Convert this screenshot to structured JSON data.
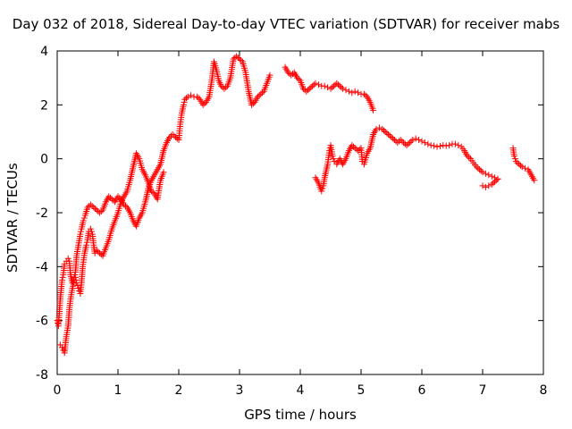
{
  "chart_data": {
    "type": "scatter",
    "title": "Day 032 of 2018, Sidereal Day-to-day VTEC variation (SDTVAR) for receiver mabs",
    "xlabel": "GPS time / hours",
    "ylabel": "SDTVAR / TECUs",
    "xlim": [
      0,
      8
    ],
    "ylim": [
      -8,
      4
    ],
    "xticks": [
      "0",
      "1",
      "2",
      "3",
      "4",
      "5",
      "6",
      "7",
      "8"
    ],
    "yticks": [
      "-8",
      "-6",
      "-4",
      "-2",
      "0",
      "2",
      "4"
    ],
    "marker": "+",
    "color": "#ff0000",
    "grid": false,
    "series": [
      {
        "segments": [
          [
            [
              0.0,
              -6.0
            ],
            [
              0.02,
              -6.2
            ],
            [
              0.05,
              -5.2
            ],
            [
              0.08,
              -4.5
            ],
            [
              0.1,
              -4.3
            ],
            [
              0.12,
              -3.9
            ],
            [
              0.15,
              -3.8
            ],
            [
              0.18,
              -3.7
            ],
            [
              0.2,
              -3.8
            ],
            [
              0.22,
              -4.3
            ],
            [
              0.25,
              -4.6
            ],
            [
              0.28,
              -4.4
            ],
            [
              0.3,
              -4.2
            ],
            [
              0.32,
              -3.6
            ],
            [
              0.35,
              -3.2
            ],
            [
              0.38,
              -2.8
            ],
            [
              0.4,
              -2.6
            ],
            [
              0.43,
              -2.3
            ],
            [
              0.46,
              -2.1
            ],
            [
              0.5,
              -1.8
            ],
            [
              0.55,
              -1.7
            ],
            [
              0.6,
              -1.8
            ],
            [
              0.65,
              -1.9
            ],
            [
              0.7,
              -2.0
            ],
            [
              0.75,
              -1.9
            ],
            [
              0.8,
              -1.6
            ],
            [
              0.85,
              -1.4
            ],
            [
              0.9,
              -1.5
            ],
            [
              0.95,
              -1.6
            ],
            [
              1.0,
              -1.4
            ],
            [
              1.05,
              -1.5
            ],
            [
              1.1,
              -1.7
            ],
            [
              1.15,
              -1.8
            ],
            [
              1.2,
              -2.0
            ],
            [
              1.25,
              -2.3
            ],
            [
              1.3,
              -2.5
            ],
            [
              1.35,
              -2.2
            ],
            [
              1.4,
              -2.0
            ],
            [
              1.45,
              -1.6
            ],
            [
              1.5,
              -1.1
            ],
            [
              1.55,
              -0.8
            ],
            [
              1.6,
              -0.6
            ],
            [
              1.65,
              -0.4
            ],
            [
              1.7,
              -0.2
            ],
            [
              1.75,
              0.3
            ],
            [
              1.8,
              0.6
            ],
            [
              1.85,
              0.8
            ],
            [
              1.9,
              0.9
            ],
            [
              1.95,
              0.8
            ],
            [
              2.0,
              0.7
            ],
            [
              2.02,
              1.2
            ],
            [
              2.05,
              1.7
            ],
            [
              2.08,
              2.0
            ],
            [
              2.1,
              2.2
            ],
            [
              2.15,
              2.3
            ],
            [
              2.2,
              2.35
            ],
            [
              2.25,
              2.3
            ],
            [
              2.3,
              2.3
            ],
            [
              2.35,
              2.2
            ],
            [
              2.4,
              2.0
            ],
            [
              2.45,
              2.1
            ],
            [
              2.5,
              2.3
            ],
            [
              2.55,
              3.0
            ],
            [
              2.58,
              3.6
            ],
            [
              2.62,
              3.3
            ],
            [
              2.66,
              2.9
            ],
            [
              2.7,
              2.7
            ],
            [
              2.75,
              2.6
            ],
            [
              2.8,
              2.7
            ],
            [
              2.85,
              3.0
            ],
            [
              2.9,
              3.7
            ],
            [
              2.95,
              3.8
            ],
            [
              3.0,
              3.7
            ],
            [
              3.05,
              3.6
            ],
            [
              3.1,
              3.2
            ],
            [
              3.15,
              2.5
            ],
            [
              3.2,
              2.0
            ],
            [
              3.25,
              2.1
            ],
            [
              3.3,
              2.3
            ],
            [
              3.35,
              2.4
            ],
            [
              3.4,
              2.5
            ],
            [
              3.45,
              2.8
            ],
            [
              3.5,
              3.1
            ]
          ],
          [
            [
              3.75,
              3.4
            ],
            [
              3.8,
              3.2
            ],
            [
              3.85,
              3.1
            ],
            [
              3.9,
              3.2
            ],
            [
              3.95,
              3.0
            ],
            [
              4.0,
              2.9
            ],
            [
              4.05,
              2.6
            ],
            [
              4.1,
              2.5
            ],
            [
              4.15,
              2.6
            ],
            [
              4.2,
              2.7
            ],
            [
              4.25,
              2.8
            ],
            [
              4.3,
              2.75
            ],
            [
              4.35,
              2.7
            ],
            [
              4.4,
              2.7
            ],
            [
              4.45,
              2.65
            ],
            [
              4.5,
              2.6
            ],
            [
              4.55,
              2.7
            ],
            [
              4.6,
              2.8
            ],
            [
              4.65,
              2.7
            ],
            [
              4.7,
              2.6
            ],
            [
              4.75,
              2.55
            ],
            [
              4.8,
              2.5
            ],
            [
              4.85,
              2.45
            ],
            [
              4.9,
              2.5
            ],
            [
              4.95,
              2.45
            ],
            [
              5.0,
              2.4
            ],
            [
              5.05,
              2.4
            ],
            [
              5.1,
              2.3
            ],
            [
              5.15,
              2.1
            ],
            [
              5.2,
              1.8
            ]
          ],
          [
            [
              4.25,
              -0.7
            ],
            [
              4.3,
              -0.9
            ],
            [
              4.35,
              -1.2
            ],
            [
              4.38,
              -1.0
            ],
            [
              4.4,
              -0.7
            ],
            [
              4.45,
              -0.2
            ],
            [
              4.48,
              0.3
            ],
            [
              4.5,
              0.5
            ],
            [
              4.53,
              0.1
            ],
            [
              4.56,
              -0.1
            ],
            [
              4.6,
              -0.2
            ],
            [
              4.65,
              0.0
            ],
            [
              4.7,
              -0.2
            ],
            [
              4.75,
              0.0
            ],
            [
              4.8,
              0.3
            ],
            [
              4.85,
              0.5
            ],
            [
              4.9,
              0.4
            ],
            [
              4.95,
              0.3
            ],
            [
              5.0,
              0.4
            ],
            [
              5.02,
              -0.1
            ],
            [
              5.05,
              -0.2
            ],
            [
              5.1,
              0.2
            ],
            [
              5.15,
              0.4
            ],
            [
              5.2,
              0.9
            ],
            [
              5.25,
              1.1
            ],
            [
              5.3,
              1.15
            ],
            [
              5.35,
              1.1
            ],
            [
              5.4,
              1.0
            ],
            [
              5.45,
              0.9
            ],
            [
              5.5,
              0.8
            ],
            [
              5.55,
              0.7
            ],
            [
              5.6,
              0.6
            ],
            [
              5.65,
              0.7
            ],
            [
              5.7,
              0.6
            ],
            [
              5.75,
              0.5
            ],
            [
              5.8,
              0.6
            ],
            [
              5.85,
              0.7
            ],
            [
              5.9,
              0.75
            ],
            [
              5.95,
              0.7
            ],
            [
              6.0,
              0.65
            ],
            [
              6.05,
              0.6
            ],
            [
              6.1,
              0.55
            ],
            [
              6.15,
              0.5
            ],
            [
              6.2,
              0.48
            ],
            [
              6.25,
              0.45
            ],
            [
              6.3,
              0.47
            ],
            [
              6.35,
              0.5
            ],
            [
              6.4,
              0.48
            ],
            [
              6.45,
              0.5
            ],
            [
              6.5,
              0.55
            ],
            [
              6.55,
              0.55
            ],
            [
              6.6,
              0.5
            ],
            [
              6.65,
              0.45
            ],
            [
              6.7,
              0.3
            ],
            [
              6.75,
              0.1
            ],
            [
              6.8,
              0.0
            ],
            [
              6.85,
              -0.15
            ],
            [
              6.9,
              -0.3
            ],
            [
              6.95,
              -0.4
            ],
            [
              7.0,
              -0.5
            ],
            [
              7.05,
              -0.55
            ],
            [
              7.1,
              -0.6
            ],
            [
              7.15,
              -0.65
            ],
            [
              7.2,
              -0.7
            ],
            [
              7.25,
              -0.75
            ]
          ],
          [
            [
              7.0,
              -1.0
            ],
            [
              7.05,
              -1.05
            ],
            [
              7.1,
              -1.0
            ],
            [
              7.15,
              -0.95
            ],
            [
              7.2,
              -0.85
            ],
            [
              7.25,
              -0.75
            ]
          ],
          [
            [
              7.5,
              0.4
            ],
            [
              7.52,
              0.1
            ],
            [
              7.55,
              -0.1
            ],
            [
              7.6,
              -0.2
            ],
            [
              7.65,
              -0.3
            ],
            [
              7.7,
              -0.35
            ],
            [
              7.75,
              -0.4
            ],
            [
              7.8,
              -0.6
            ],
            [
              7.85,
              -0.8
            ]
          ],
          [
            [
              0.05,
              -6.9
            ],
            [
              0.08,
              -7.0
            ],
            [
              0.1,
              -7.1
            ],
            [
              0.12,
              -7.2
            ],
            [
              0.15,
              -6.6
            ],
            [
              0.18,
              -6.2
            ],
            [
              0.2,
              -5.6
            ],
            [
              0.22,
              -5.2
            ],
            [
              0.25,
              -4.8
            ],
            [
              0.28,
              -4.5
            ],
            [
              0.3,
              -4.4
            ],
            [
              0.32,
              -4.6
            ],
            [
              0.35,
              -4.8
            ],
            [
              0.38,
              -5.0
            ],
            [
              0.4,
              -4.6
            ],
            [
              0.42,
              -4.0
            ],
            [
              0.45,
              -3.5
            ],
            [
              0.48,
              -3.2
            ],
            [
              0.5,
              -3.0
            ],
            [
              0.52,
              -2.7
            ],
            [
              0.55,
              -2.6
            ],
            [
              0.58,
              -2.8
            ],
            [
              0.6,
              -3.2
            ],
            [
              0.62,
              -3.5
            ],
            [
              0.65,
              -3.4
            ],
            [
              0.7,
              -3.5
            ],
            [
              0.75,
              -3.6
            ],
            [
              0.8,
              -3.3
            ],
            [
              0.85,
              -3.0
            ],
            [
              0.9,
              -2.6
            ],
            [
              0.95,
              -2.3
            ],
            [
              1.0,
              -2.0
            ],
            [
              1.05,
              -1.6
            ],
            [
              1.1,
              -1.4
            ],
            [
              1.15,
              -1.2
            ],
            [
              1.2,
              -0.8
            ],
            [
              1.25,
              -0.3
            ],
            [
              1.3,
              0.2
            ],
            [
              1.35,
              0.0
            ],
            [
              1.4,
              -0.4
            ],
            [
              1.45,
              -0.6
            ],
            [
              1.5,
              -0.9
            ],
            [
              1.55,
              -1.2
            ],
            [
              1.6,
              -1.3
            ],
            [
              1.65,
              -1.5
            ],
            [
              1.7,
              -0.8
            ],
            [
              1.75,
              -0.5
            ]
          ]
        ]
      }
    ]
  }
}
